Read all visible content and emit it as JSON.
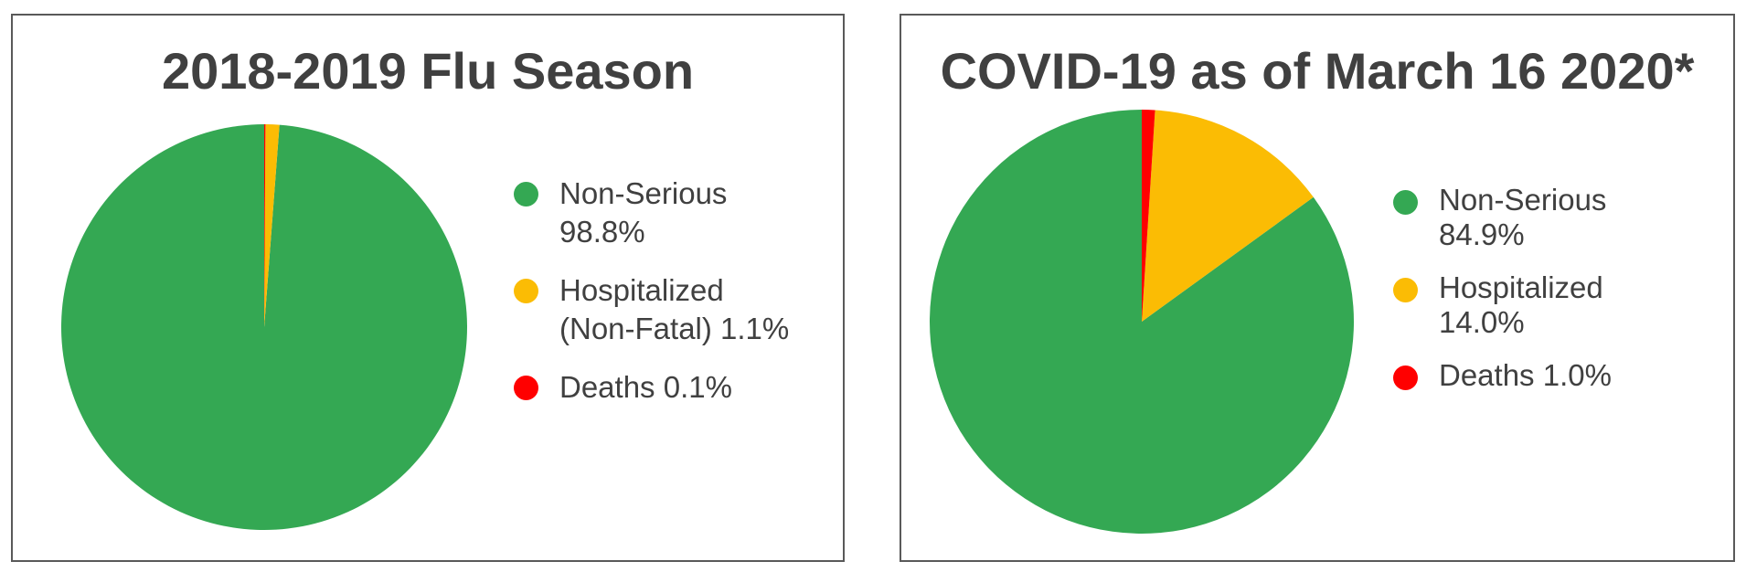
{
  "chart_data": [
    {
      "type": "pie",
      "title": "2018-2019 Flu Season",
      "slices": [
        {
          "label": "Non-Serious",
          "value": 98.8,
          "color": "#34a853",
          "legend": [
            "Non-Serious",
            "98.8%"
          ]
        },
        {
          "label": "Hospitalized (Non-Fatal)",
          "value": 1.1,
          "color": "#fbbc04",
          "legend": [
            "Hospitalized",
            "(Non-Fatal) 1.1%"
          ]
        },
        {
          "label": "Deaths",
          "value": 0.1,
          "color": "#ff0000",
          "legend": [
            "Deaths 0.1%"
          ]
        }
      ],
      "legend_position": "right"
    },
    {
      "type": "pie",
      "title": "COVID-19 as of March 16 2020*",
      "slices": [
        {
          "label": "Non-Serious",
          "value": 84.9,
          "color": "#34a853",
          "legend": [
            "Non-Serious",
            "84.9%"
          ]
        },
        {
          "label": "Hospitalized",
          "value": 14.0,
          "color": "#fbbc04",
          "legend": [
            "Hospitalized",
            "14.0%"
          ]
        },
        {
          "label": "Deaths",
          "value": 1.0,
          "color": "#ff0000",
          "legend": [
            "Deaths 1.0%"
          ]
        }
      ],
      "legend_position": "right"
    }
  ]
}
